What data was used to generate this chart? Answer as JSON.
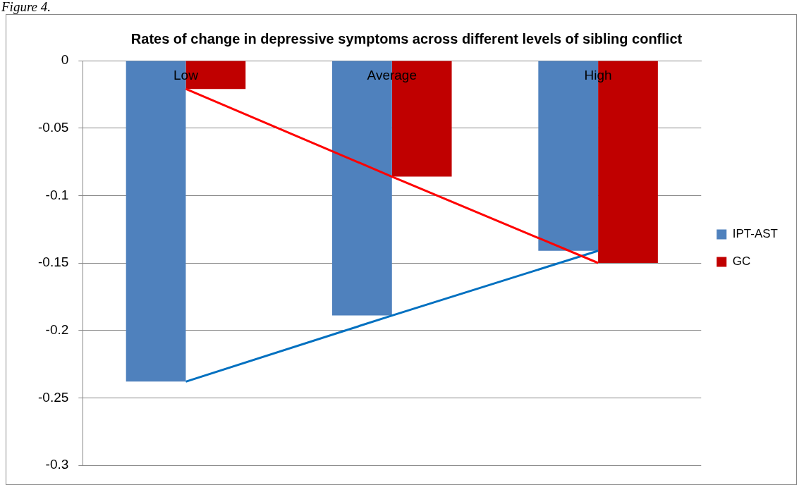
{
  "chart_data": {
    "type": "bar",
    "title": "Rates of change in depressive symptoms across different levels of sibling conflict",
    "categories": [
      "Low",
      "Average",
      "High"
    ],
    "series": [
      {
        "name": "IPT-AST",
        "color": "#4f81bd",
        "values": [
          -0.238,
          -0.189,
          -0.141
        ]
      },
      {
        "name": "GC",
        "color": "#c00000",
        "values": [
          -0.021,
          -0.086,
          -0.15
        ]
      },
      {
        "type": "line",
        "color": "#ff0000",
        "values": [
          -0.021,
          -0.086,
          -0.15
        ]
      },
      {
        "type": "line",
        "color": "#0070c0",
        "values": [
          -0.238,
          -0.189,
          -0.141
        ]
      }
    ],
    "ylim": [
      -0.3,
      0
    ],
    "yticks": [
      -0.3,
      -0.25,
      -0.2,
      -0.15,
      -0.1,
      -0.05,
      0
    ],
    "grid": "y",
    "legend": "right",
    "marker": "none",
    "line_style": "solid",
    "annotations": [
      "Figure 4."
    ]
  }
}
